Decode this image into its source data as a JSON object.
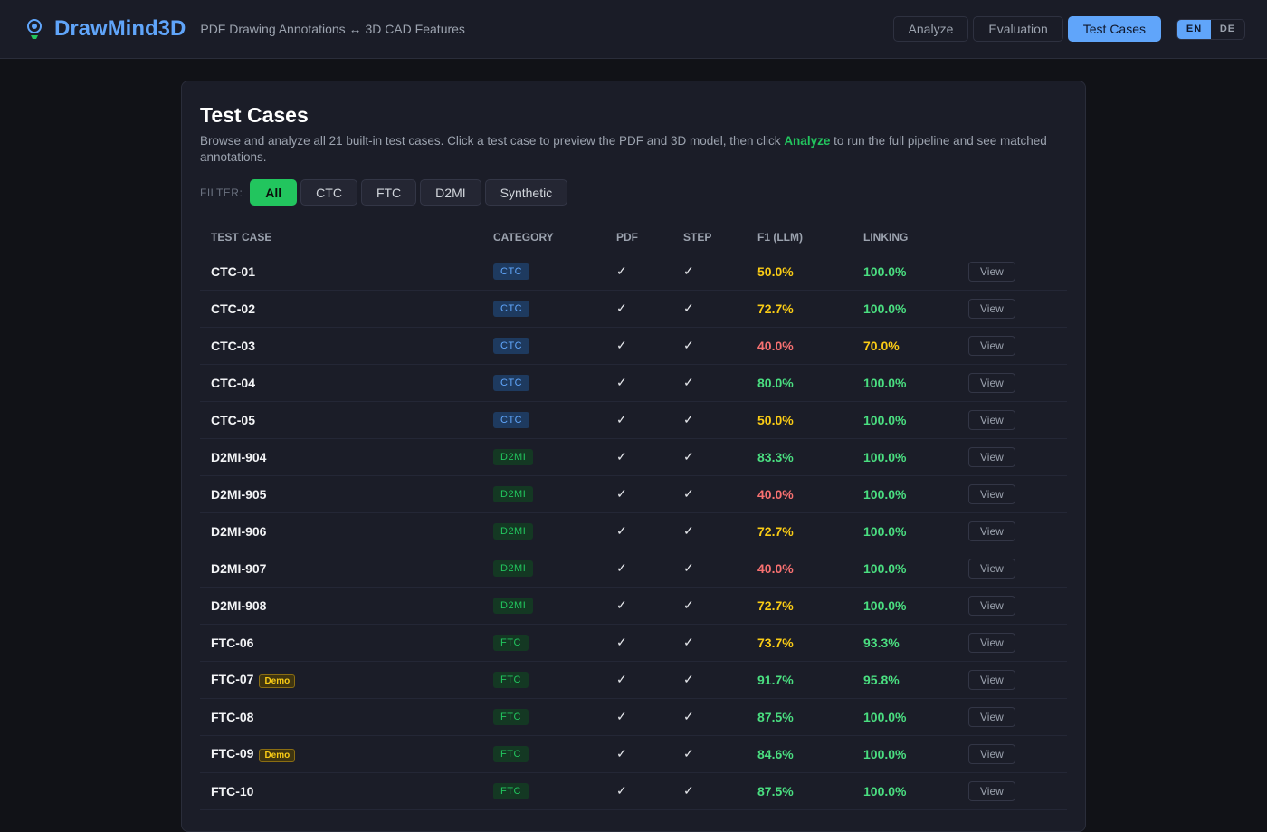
{
  "header": {
    "brand": "DrawMind3D",
    "subtitle": "PDF Drawing Annotations ↔ 3D CAD Features",
    "nav": [
      "Analyze",
      "Evaluation",
      "Test Cases"
    ],
    "active_nav": "Test Cases",
    "lang": [
      "EN",
      "DE"
    ],
    "active_lang": "EN"
  },
  "page": {
    "title": "Test Cases",
    "desc_before": "Browse and analyze all 21 built-in test cases. Click a test case to preview the PDF and 3D model, then click ",
    "desc_bold": "Analyze",
    "desc_after": " to run the full pipeline and see matched annotations.",
    "filter_label": "FILTER:",
    "filters": [
      "All",
      "CTC",
      "FTC",
      "D2MI",
      "Synthetic"
    ],
    "active_filter": "All"
  },
  "colors": {
    "good": "#4ade80",
    "warn": "#facc15",
    "bad": "#f87171",
    "accent": "#60a5fa",
    "green": "#22c55e"
  },
  "table": {
    "columns": [
      "TEST CASE",
      "CATEGORY",
      "PDF",
      "STEP",
      "F1 (LLM)",
      "LINKING",
      ""
    ],
    "view_label": "View",
    "demo_label": "Demo",
    "check": "✓",
    "rows": [
      {
        "name": "CTC-01",
        "cat": "CTC",
        "pdf": true,
        "step": true,
        "f1": "50.0%",
        "link": "100.0%"
      },
      {
        "name": "CTC-02",
        "cat": "CTC",
        "pdf": true,
        "step": true,
        "f1": "72.7%",
        "link": "100.0%"
      },
      {
        "name": "CTC-03",
        "cat": "CTC",
        "pdf": true,
        "step": true,
        "f1": "40.0%",
        "link": "70.0%"
      },
      {
        "name": "CTC-04",
        "cat": "CTC",
        "pdf": true,
        "step": true,
        "f1": "80.0%",
        "link": "100.0%"
      },
      {
        "name": "CTC-05",
        "cat": "CTC",
        "pdf": true,
        "step": true,
        "f1": "50.0%",
        "link": "100.0%"
      },
      {
        "name": "D2MI-904",
        "cat": "D2MI",
        "pdf": true,
        "step": true,
        "f1": "83.3%",
        "link": "100.0%"
      },
      {
        "name": "D2MI-905",
        "cat": "D2MI",
        "pdf": true,
        "step": true,
        "f1": "40.0%",
        "link": "100.0%"
      },
      {
        "name": "D2MI-906",
        "cat": "D2MI",
        "pdf": true,
        "step": true,
        "f1": "72.7%",
        "link": "100.0%"
      },
      {
        "name": "D2MI-907",
        "cat": "D2MI",
        "pdf": true,
        "step": true,
        "f1": "40.0%",
        "link": "100.0%"
      },
      {
        "name": "D2MI-908",
        "cat": "D2MI",
        "pdf": true,
        "step": true,
        "f1": "72.7%",
        "link": "100.0%"
      },
      {
        "name": "FTC-06",
        "cat": "FTC",
        "pdf": true,
        "step": true,
        "f1": "73.7%",
        "link": "93.3%"
      },
      {
        "name": "FTC-07",
        "cat": "FTC",
        "demo": true,
        "pdf": true,
        "step": true,
        "f1": "91.7%",
        "link": "95.8%"
      },
      {
        "name": "FTC-08",
        "cat": "FTC",
        "pdf": true,
        "step": true,
        "f1": "87.5%",
        "link": "100.0%"
      },
      {
        "name": "FTC-09",
        "cat": "FTC",
        "demo": true,
        "pdf": true,
        "step": true,
        "f1": "84.6%",
        "link": "100.0%"
      },
      {
        "name": "FTC-10",
        "cat": "FTC",
        "pdf": true,
        "step": true,
        "f1": "87.5%",
        "link": "100.0%"
      }
    ]
  }
}
